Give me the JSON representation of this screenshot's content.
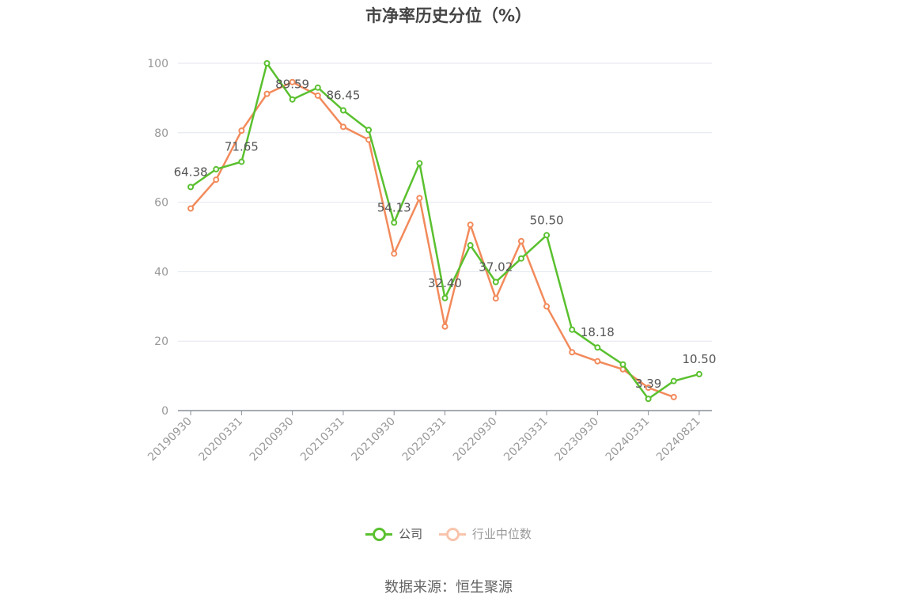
{
  "chart_data": {
    "type": "line",
    "title": "市净率历史分位（%）",
    "source": "数据来源：恒生聚源",
    "xlabel": "",
    "ylabel": "",
    "ylim": [
      0,
      100
    ],
    "yticks": [
      0,
      20,
      40,
      60,
      80,
      100
    ],
    "xtick_labels": [
      "20190930",
      "20200331",
      "20200930",
      "20210331",
      "20210930",
      "20220331",
      "20220930",
      "20230331",
      "20230930",
      "20240331",
      "20240821"
    ],
    "x_slots": 21,
    "legend_position": "bottom",
    "grid": true,
    "series": [
      {
        "name": "公司",
        "color": "#5ac02f",
        "values": [
          64.38,
          69.5,
          71.65,
          100,
          89.59,
          93.0,
          86.45,
          80.8,
          54.13,
          71.2,
          32.4,
          47.6,
          37.02,
          43.8,
          50.5,
          23.3,
          18.18,
          13.3,
          3.39,
          8.5,
          10.5
        ],
        "labels": [
          "64.38",
          "",
          "71.65",
          "",
          "89.59",
          "",
          "86.45",
          "",
          "54.13",
          "",
          "32.40",
          "",
          "37.02",
          "",
          "50.50",
          "",
          "18.18",
          "",
          "3.39",
          "",
          "10.50"
        ]
      },
      {
        "name": "行业中位数",
        "color": "#f28a5b",
        "values": [
          58.2,
          66.5,
          80.6,
          91.2,
          94.6,
          90.7,
          81.7,
          78.0,
          45.2,
          61.2,
          24.2,
          53.5,
          32.3,
          48.8,
          30.0,
          16.8,
          14.2,
          11.9,
          6.6,
          3.9,
          null
        ]
      }
    ]
  }
}
